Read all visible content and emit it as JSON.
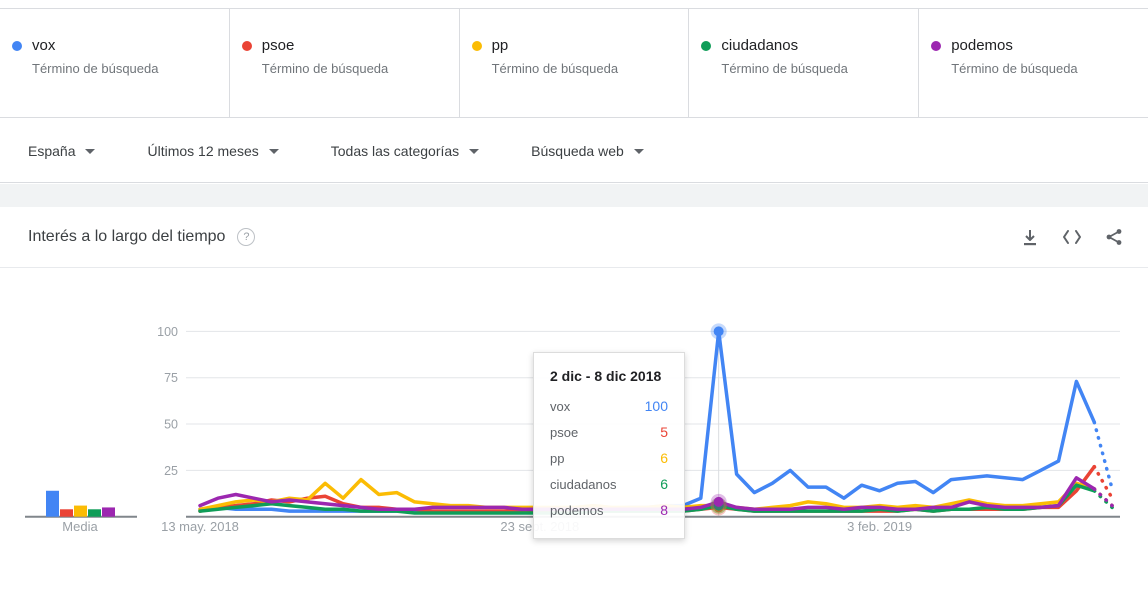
{
  "terms": {
    "subtitle": "Término de búsqueda",
    "items": [
      {
        "label": "vox",
        "color": "#4285f4"
      },
      {
        "label": "psoe",
        "color": "#ea4335"
      },
      {
        "label": "pp",
        "color": "#fbbc04"
      },
      {
        "label": "ciudadanos",
        "color": "#0f9d58"
      },
      {
        "label": "podemos",
        "color": "#9c27b0"
      }
    ]
  },
  "filters": {
    "items": [
      {
        "label": "España"
      },
      {
        "label": "Últimos 12 meses"
      },
      {
        "label": "Todas las categorías"
      },
      {
        "label": "Búsqueda web"
      }
    ]
  },
  "panel": {
    "title": "Interés a lo largo del tiempo",
    "help_icon": "question-mark",
    "actions": [
      "download",
      "embed-code",
      "share"
    ]
  },
  "tooltip": {
    "date_range": "2 dic - 8 dic 2018",
    "rows": [
      {
        "label": "vox",
        "value": "100",
        "color": "#4285f4"
      },
      {
        "label": "psoe",
        "value": "5",
        "color": "#ea4335"
      },
      {
        "label": "pp",
        "value": "6",
        "color": "#fbbc04"
      },
      {
        "label": "ciudadanos",
        "value": "6",
        "color": "#0f9d58"
      },
      {
        "label": "podemos",
        "value": "8",
        "color": "#9c27b0"
      }
    ]
  },
  "chart_data": {
    "type": "line",
    "title": "Interés a lo largo del tiempo",
    "x_unit": "weeks",
    "x_range": [
      "13 may. 2018",
      "5 may. 2019"
    ],
    "x_ticks": [
      {
        "index": 0,
        "label": "13 may. 2018"
      },
      {
        "index": 19,
        "label": "23 sept. 2018"
      },
      {
        "index": 38,
        "label": "3 feb. 2019"
      }
    ],
    "y_ticks": [
      25,
      50,
      75,
      100
    ],
    "ylim": [
      0,
      100
    ],
    "grid": "horizontal",
    "dotted_last_segment": true,
    "highlight": {
      "index": 29,
      "date_range": "2 dic - 8 dic 2018"
    },
    "series": [
      {
        "name": "vox",
        "color": "#4285f4",
        "values": [
          4,
          5,
          4,
          4,
          4,
          3,
          3,
          3,
          3,
          3,
          3,
          3,
          3,
          3,
          3,
          3,
          3,
          3,
          3,
          4,
          4,
          4,
          5,
          4,
          5,
          5,
          6,
          6,
          10,
          100,
          23,
          13,
          18,
          25,
          16,
          16,
          10,
          17,
          14,
          18,
          19,
          13,
          20,
          21,
          22,
          21,
          20,
          25,
          30,
          73,
          51,
          15
        ]
      },
      {
        "name": "psoe",
        "color": "#ea4335",
        "values": [
          3,
          5,
          6,
          7,
          9,
          8,
          10,
          11,
          7,
          5,
          5,
          4,
          4,
          3,
          3,
          3,
          3,
          3,
          3,
          3,
          3,
          3,
          3,
          3,
          3,
          3,
          3,
          3,
          4,
          5,
          4,
          3,
          3,
          3,
          3,
          3,
          3,
          3,
          3,
          3,
          4,
          3,
          4,
          4,
          4,
          4,
          4,
          5,
          5,
          14,
          27,
          10
        ]
      },
      {
        "name": "pp",
        "color": "#fbbc04",
        "values": [
          4,
          6,
          8,
          9,
          8,
          10,
          9,
          18,
          10,
          20,
          12,
          13,
          8,
          7,
          6,
          6,
          5,
          5,
          5,
          5,
          5,
          5,
          6,
          5,
          5,
          5,
          6,
          5,
          6,
          6,
          5,
          4,
          5,
          6,
          8,
          7,
          5,
          5,
          6,
          5,
          6,
          5,
          7,
          9,
          7,
          6,
          6,
          7,
          8,
          18,
          15,
          6
        ]
      },
      {
        "name": "ciudadanos",
        "color": "#0f9d58",
        "values": [
          3,
          4,
          5,
          6,
          7,
          6,
          5,
          4,
          4,
          3,
          3,
          3,
          2,
          2,
          2,
          2,
          2,
          2,
          2,
          2,
          2,
          2,
          3,
          3,
          3,
          3,
          3,
          3,
          4,
          6,
          4,
          3,
          3,
          3,
          3,
          3,
          3,
          3,
          4,
          3,
          4,
          3,
          4,
          4,
          5,
          4,
          4,
          5,
          6,
          17,
          14,
          5
        ]
      },
      {
        "name": "podemos",
        "color": "#9c27b0",
        "values": [
          6,
          10,
          12,
          10,
          8,
          9,
          8,
          7,
          6,
          5,
          4,
          4,
          4,
          5,
          5,
          5,
          5,
          5,
          4,
          4,
          4,
          4,
          4,
          4,
          4,
          4,
          4,
          4,
          5,
          8,
          5,
          4,
          4,
          4,
          5,
          5,
          4,
          5,
          5,
          4,
          4,
          5,
          5,
          8,
          6,
          5,
          5,
          5,
          6,
          21,
          15,
          6
        ]
      }
    ],
    "media": {
      "label": "Media",
      "values": [
        {
          "name": "vox",
          "value": 14,
          "color": "#4285f4"
        },
        {
          "name": "psoe",
          "value": 4,
          "color": "#ea4335"
        },
        {
          "name": "pp",
          "value": 6,
          "color": "#fbbc04"
        },
        {
          "name": "ciudadanos",
          "value": 4,
          "color": "#0f9d58"
        },
        {
          "name": "podemos",
          "value": 5,
          "color": "#9c27b0"
        }
      ]
    }
  }
}
